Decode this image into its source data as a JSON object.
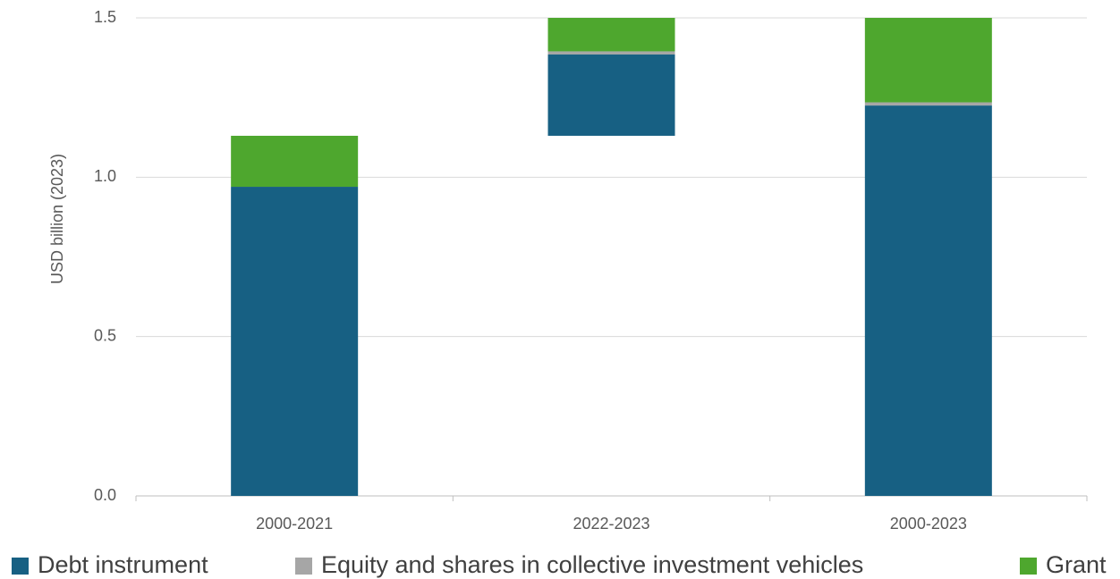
{
  "chart_data": {
    "type": "waterfall",
    "y_label": "USD billion (2023)",
    "categories": [
      "2000-2021",
      "2022-2023",
      "2000-2023"
    ],
    "series": [
      {
        "name": "Debt instrument",
        "color": "#176083",
        "values": [
          0.97,
          0.255,
          1.225
        ]
      },
      {
        "name": "Equity and shares in collective investment vehicles",
        "color": "#a6a6a6",
        "values": [
          0.0,
          0.01,
          0.01
        ]
      },
      {
        "name": "Grant",
        "color": "#4ea72e",
        "values": [
          0.16,
          0.105,
          0.265
        ]
      }
    ],
    "ylim": [
      0,
      1.5
    ],
    "yticks": [
      {
        "value": 0,
        "label": "0.0"
      },
      0.5,
      {
        "value": 1,
        "label": "1.0"
      },
      1.5
    ],
    "grid": true,
    "legend": "bottom"
  }
}
